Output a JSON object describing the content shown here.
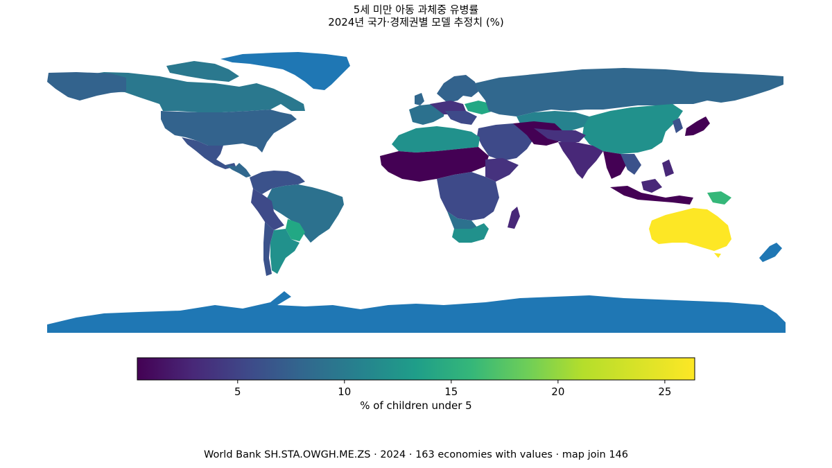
{
  "title": {
    "line1": "5세 미만 아동 과체중 유병률",
    "line2": "2024년 국가·경제권별 모델 추정치 (%)"
  },
  "colorbar": {
    "label": "% of children under 5",
    "colormap": "viridis",
    "min": 0.3,
    "max": 26.4,
    "ticks": [
      "5",
      "10",
      "15",
      "20",
      "25"
    ],
    "tick_values": [
      5,
      10,
      15,
      20,
      25
    ]
  },
  "source": "World Bank SH.STA.OWGH.ME.ZS · 2024 · 163 economies with values · map join 146",
  "colors": {
    "no_data": "#1f77b4",
    "low": "#440154",
    "high": "#fde725"
  }
}
